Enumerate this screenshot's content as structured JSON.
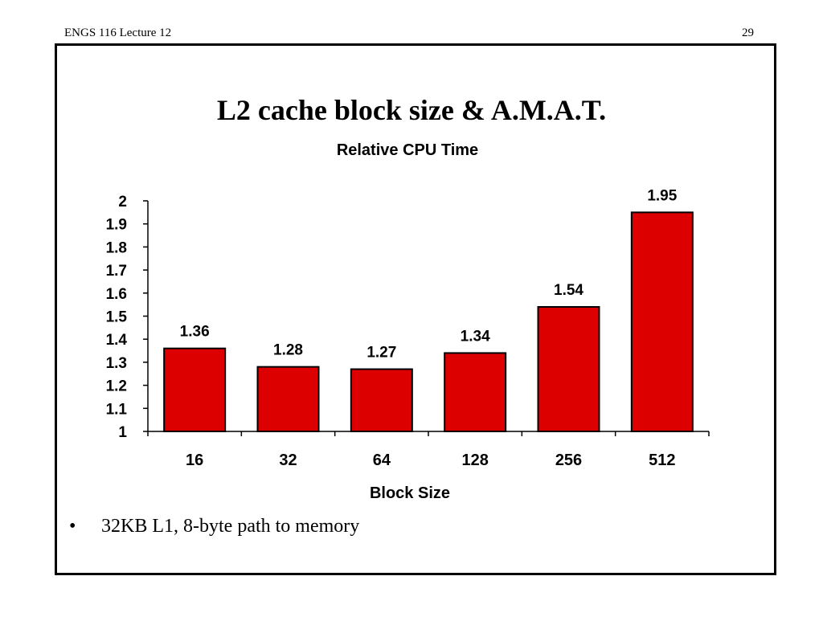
{
  "header": {
    "left": "ENGS 116  Lecture 12",
    "right": "29"
  },
  "slide_title": "L2 cache block size & A.M.A.T.",
  "bullets": [
    "32KB L1, 8-byte path to memory"
  ],
  "colors": {
    "bar": "#dd0000",
    "bar_stroke": "#000000"
  },
  "chart_data": {
    "type": "bar",
    "title": "Relative CPU Time",
    "xlabel": "Block Size",
    "ylabel": "",
    "categories": [
      "16",
      "32",
      "64",
      "128",
      "256",
      "512"
    ],
    "values": [
      1.36,
      1.28,
      1.27,
      1.34,
      1.54,
      1.95
    ],
    "data_labels": [
      "1.36",
      "1.28",
      "1.27",
      "1.34",
      "1.54",
      "1.95"
    ],
    "yticks": [
      "1",
      "1.1",
      "1.2",
      "1.3",
      "1.4",
      "1.5",
      "1.6",
      "1.7",
      "1.8",
      "1.9",
      "2"
    ],
    "ylim": [
      1,
      2
    ],
    "grid": false,
    "legend": "none"
  }
}
